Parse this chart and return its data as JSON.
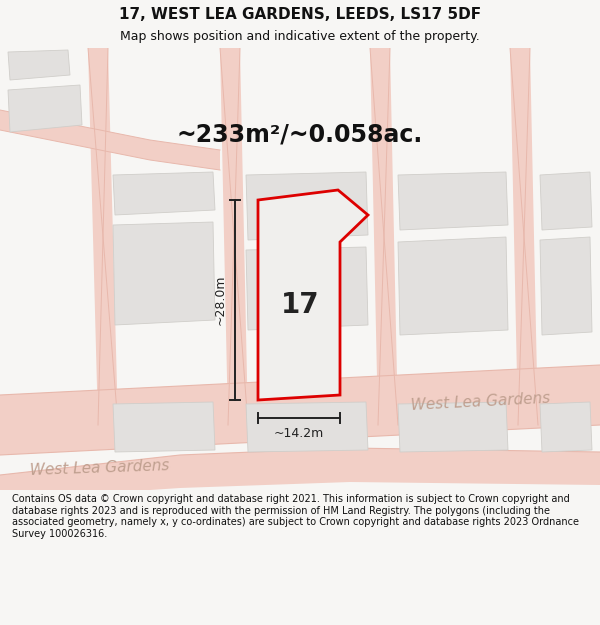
{
  "title": "17, WEST LEA GARDENS, LEEDS, LS17 5DF",
  "subtitle": "Map shows position and indicative extent of the property.",
  "area_text": "~233m²/~0.058ac.",
  "dim_width": "~14.2m",
  "dim_height": "~28.0m",
  "property_label": "17",
  "footer_text": "Contains OS data © Crown copyright and database right 2021. This information is subject to Crown copyright and database rights 2023 and is reproduced with the permission of HM Land Registry. The polygons (including the associated geometry, namely x, y co-ordinates) are subject to Crown copyright and database rights 2023 Ordnance Survey 100026316.",
  "bg_color": "#f7f6f4",
  "property_fill": "#f0efed",
  "property_edge": "#dd0000",
  "road_color": "#f2cfc6",
  "road_line_color": "#e8b8ac",
  "building_fill": "#e2e0de",
  "building_edge": "#d0ceca",
  "dim_line_color": "#222222",
  "road_label_color": "#c0a090",
  "title_color": "#111111",
  "area_color": "#111111",
  "footer_color": "#111111",
  "title_fontsize": 11,
  "subtitle_fontsize": 9,
  "area_fontsize": 17,
  "dim_fontsize": 9,
  "road_label_fontsize": 11,
  "property_num_fontsize": 20,
  "footer_fontsize": 7
}
